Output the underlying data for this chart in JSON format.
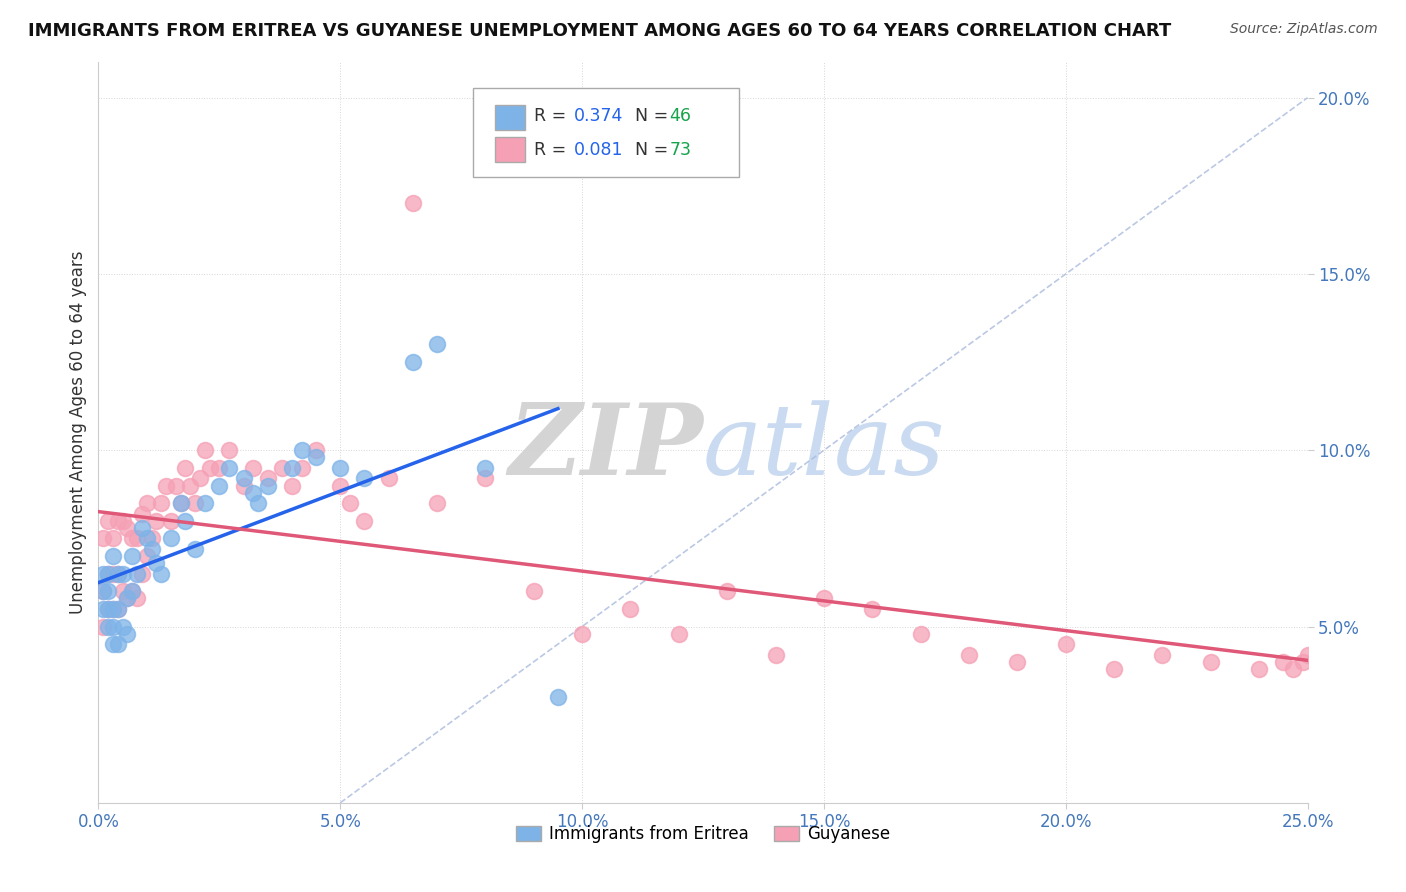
{
  "title": "IMMIGRANTS FROM ERITREA VS GUYANESE UNEMPLOYMENT AMONG AGES 60 TO 64 YEARS CORRELATION CHART",
  "source": "Source: ZipAtlas.com",
  "ylabel": "Unemployment Among Ages 60 to 64 years",
  "xlim": [
    0.0,
    0.25
  ],
  "ylim": [
    0.0,
    0.21
  ],
  "xticks": [
    0.0,
    0.05,
    0.1,
    0.15,
    0.2,
    0.25
  ],
  "xticklabels": [
    "0.0%",
    "5.0%",
    "10.0%",
    "15.0%",
    "20.0%",
    "25.0%"
  ],
  "yticks": [
    0.05,
    0.1,
    0.15,
    0.2
  ],
  "yticklabels": [
    "5.0%",
    "10.0%",
    "15.0%",
    "20.0%"
  ],
  "series1_label": "Immigrants from Eritrea",
  "series1_color": "#7eb3e8",
  "series1_R": 0.374,
  "series1_N": 46,
  "series2_label": "Guyanese",
  "series2_color": "#f5a0b5",
  "series2_R": 0.081,
  "series2_N": 73,
  "legend_R_color": "#2563eb",
  "legend_N_color": "#16a34a",
  "background_color": "#ffffff",
  "series1_x": [
    0.001,
    0.001,
    0.001,
    0.002,
    0.002,
    0.002,
    0.002,
    0.003,
    0.003,
    0.003,
    0.003,
    0.004,
    0.004,
    0.004,
    0.005,
    0.005,
    0.006,
    0.006,
    0.007,
    0.007,
    0.008,
    0.009,
    0.01,
    0.011,
    0.012,
    0.013,
    0.015,
    0.017,
    0.018,
    0.02,
    0.022,
    0.025,
    0.027,
    0.03,
    0.032,
    0.033,
    0.035,
    0.04,
    0.042,
    0.045,
    0.05,
    0.055,
    0.065,
    0.07,
    0.08,
    0.095
  ],
  "series1_y": [
    0.055,
    0.06,
    0.065,
    0.05,
    0.055,
    0.06,
    0.065,
    0.045,
    0.05,
    0.055,
    0.07,
    0.045,
    0.055,
    0.065,
    0.05,
    0.065,
    0.048,
    0.058,
    0.06,
    0.07,
    0.065,
    0.078,
    0.075,
    0.072,
    0.068,
    0.065,
    0.075,
    0.085,
    0.08,
    0.072,
    0.085,
    0.09,
    0.095,
    0.092,
    0.088,
    0.085,
    0.09,
    0.095,
    0.1,
    0.098,
    0.095,
    0.092,
    0.125,
    0.13,
    0.095,
    0.03
  ],
  "series2_x": [
    0.001,
    0.001,
    0.001,
    0.002,
    0.002,
    0.002,
    0.003,
    0.003,
    0.003,
    0.004,
    0.004,
    0.004,
    0.005,
    0.005,
    0.006,
    0.006,
    0.007,
    0.007,
    0.008,
    0.008,
    0.009,
    0.009,
    0.01,
    0.01,
    0.011,
    0.012,
    0.013,
    0.014,
    0.015,
    0.016,
    0.017,
    0.018,
    0.019,
    0.02,
    0.021,
    0.022,
    0.023,
    0.025,
    0.027,
    0.03,
    0.032,
    0.035,
    0.038,
    0.04,
    0.042,
    0.045,
    0.05,
    0.052,
    0.055,
    0.06,
    0.065,
    0.07,
    0.08,
    0.09,
    0.1,
    0.11,
    0.12,
    0.13,
    0.14,
    0.15,
    0.16,
    0.17,
    0.18,
    0.19,
    0.2,
    0.21,
    0.22,
    0.23,
    0.24,
    0.245,
    0.247,
    0.249,
    0.25
  ],
  "series2_y": [
    0.05,
    0.06,
    0.075,
    0.055,
    0.065,
    0.08,
    0.055,
    0.065,
    0.075,
    0.055,
    0.065,
    0.08,
    0.06,
    0.08,
    0.058,
    0.078,
    0.06,
    0.075,
    0.058,
    0.075,
    0.065,
    0.082,
    0.07,
    0.085,
    0.075,
    0.08,
    0.085,
    0.09,
    0.08,
    0.09,
    0.085,
    0.095,
    0.09,
    0.085,
    0.092,
    0.1,
    0.095,
    0.095,
    0.1,
    0.09,
    0.095,
    0.092,
    0.095,
    0.09,
    0.095,
    0.1,
    0.09,
    0.085,
    0.08,
    0.092,
    0.17,
    0.085,
    0.092,
    0.06,
    0.048,
    0.055,
    0.048,
    0.06,
    0.042,
    0.058,
    0.055,
    0.048,
    0.042,
    0.04,
    0.045,
    0.038,
    0.042,
    0.04,
    0.038,
    0.04,
    0.038,
    0.04,
    0.042
  ]
}
